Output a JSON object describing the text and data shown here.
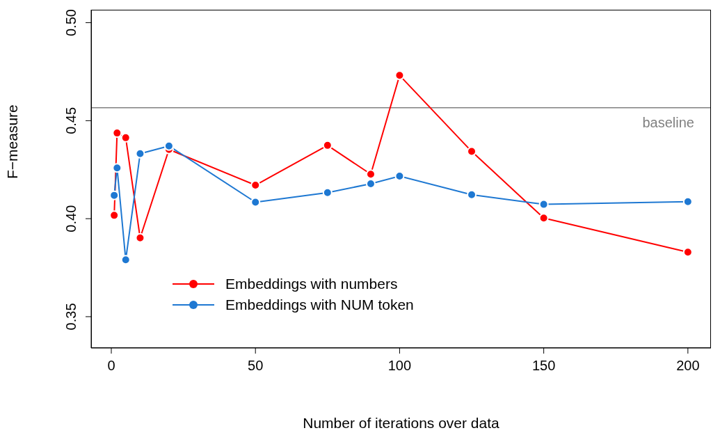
{
  "chart_data": {
    "type": "line",
    "xlabel": "Number of iterations over data",
    "ylabel": "F−measure",
    "x": [
      1,
      2,
      5,
      10,
      20,
      50,
      75,
      90,
      100,
      125,
      150,
      200
    ],
    "series": [
      {
        "name": "Embeddings with numbers",
        "color": "#ff0000",
        "values": [
          0.4017,
          0.4437,
          0.4413,
          0.3902,
          0.4353,
          0.4171,
          0.4374,
          0.4227,
          0.4731,
          0.4343,
          0.4003,
          0.3829
        ]
      },
      {
        "name": "Embeddings with NUM token",
        "color": "#1e78d2",
        "values": [
          0.4119,
          0.4259,
          0.379,
          0.4332,
          0.4371,
          0.4084,
          0.4133,
          0.4178,
          0.4217,
          0.4122,
          0.4073,
          0.4087
        ]
      }
    ],
    "xlim": [
      -7,
      208
    ],
    "xticks": [
      0,
      50,
      100,
      150,
      200
    ],
    "ylim": [
      0.334,
      0.5066
    ],
    "yticks": [
      {
        "value": 0.35,
        "label": "0.35"
      },
      {
        "value": 0.4,
        "label": "0.40"
      },
      {
        "value": 0.45,
        "label": "0.45"
      },
      {
        "value": 0.5,
        "label": "0.50"
      }
    ],
    "ref_lines": [
      {
        "axis": "y",
        "value": 0.4566,
        "label": "baseline",
        "color": "#808080"
      }
    ],
    "marker": "circle",
    "grid": false,
    "legend": "bottom left"
  }
}
